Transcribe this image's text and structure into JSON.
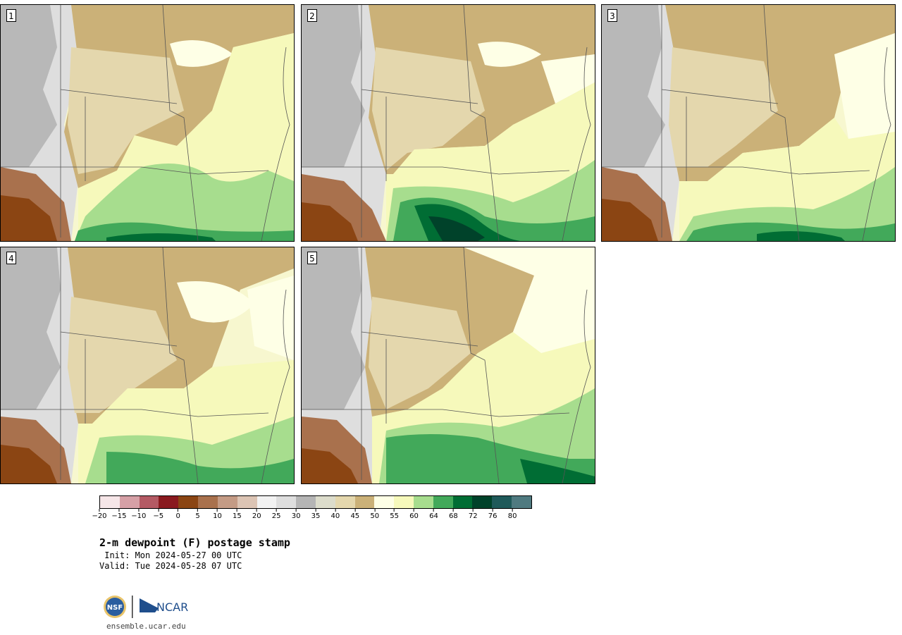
{
  "panels": [
    {
      "label": "1"
    },
    {
      "label": "2"
    },
    {
      "label": "3"
    },
    {
      "label": "4"
    },
    {
      "label": "5"
    }
  ],
  "colorbar": {
    "ticks": [
      "−20",
      "−15",
      "−10",
      "−5",
      "0",
      "5",
      "10",
      "15",
      "20",
      "25",
      "30",
      "35",
      "40",
      "45",
      "50",
      "55",
      "60",
      "64",
      "68",
      "72",
      "76",
      "80"
    ],
    "colors": [
      "#f6e6e8",
      "#d6a0a6",
      "#b45a64",
      "#8a1a1f",
      "#8b4513",
      "#a9714d",
      "#c49b85",
      "#dcc4b4",
      "#f2f2f2",
      "#dedede",
      "#b5b5b5",
      "#dcdccb",
      "#e4d7ad",
      "#cbb178",
      "#feffe6",
      "#f6f9bb",
      "#a7dd8e",
      "#42a95a",
      "#006d34",
      "#00422a",
      "#1f5a5a",
      "#4f7a80"
    ]
  },
  "title": "2-m dewpoint (F) postage stamp",
  "init": " Init: Mon 2024-05-27 00 UTC",
  "valid": "Valid: Tue 2024-05-28 07 UTC",
  "logo": {
    "nsf": "NSF",
    "ncar": "NCAR"
  },
  "site": "ensemble.ucar.edu"
}
